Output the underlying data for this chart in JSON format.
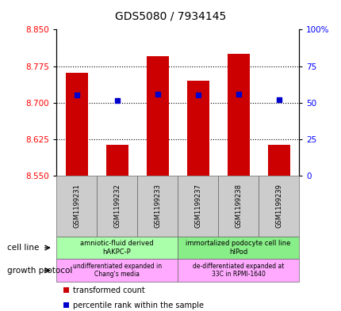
{
  "title": "GDS5080 / 7934145",
  "samples": [
    "GSM1199231",
    "GSM1199232",
    "GSM1199233",
    "GSM1199237",
    "GSM1199238",
    "GSM1199239"
  ],
  "bar_bottoms": [
    8.55,
    8.55,
    8.55,
    8.55,
    8.55,
    8.55
  ],
  "bar_tops": [
    8.762,
    8.613,
    8.795,
    8.745,
    8.8,
    8.613
  ],
  "percentile_values": [
    8.715,
    8.705,
    8.718,
    8.716,
    8.718,
    8.706
  ],
  "ylim": [
    8.55,
    8.85
  ],
  "yticks_left": [
    8.55,
    8.625,
    8.7,
    8.775,
    8.85
  ],
  "yticks_right_pct": [
    0,
    25,
    50,
    75,
    100
  ],
  "bar_color": "#cc0000",
  "percentile_color": "#0000cc",
  "cell_line_groups": [
    {
      "label": "amniotic-fluid derived\nhAKPC-P",
      "start": 0,
      "end": 3,
      "color": "#aaffaa"
    },
    {
      "label": "immortalized podocyte cell line\nhIPod",
      "start": 3,
      "end": 6,
      "color": "#88ee88"
    }
  ],
  "growth_protocol_groups": [
    {
      "label": "undifferentiated expanded in\nChang's media",
      "start": 0,
      "end": 3,
      "color": "#ffaaff"
    },
    {
      "label": "de-differentiated expanded at\n33C in RPMI-1640",
      "start": 3,
      "end": 6,
      "color": "#ffaaff"
    }
  ],
  "cell_line_label": "cell line",
  "growth_protocol_label": "growth protocol",
  "legend_items": [
    {
      "label": "  transformed count",
      "color": "#cc0000"
    },
    {
      "label": "  percentile rank within the sample",
      "color": "#0000cc"
    }
  ]
}
